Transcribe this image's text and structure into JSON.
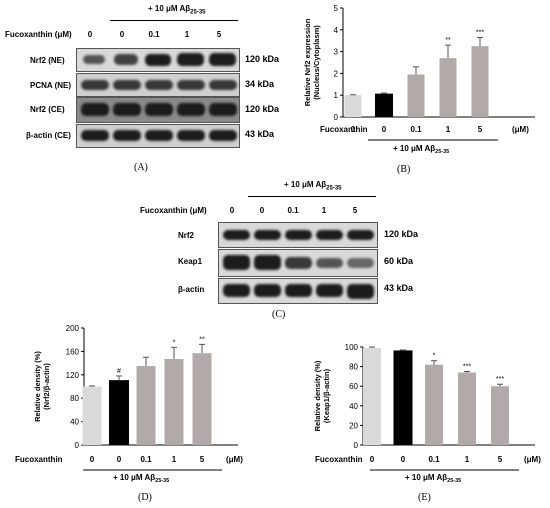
{
  "treatment_label": "+ 10 μM Aβ",
  "treatment_sub": "25-35",
  "fucoxanthin_um": "Fucoxanthin (μM)",
  "fucoxanthin": "Fucoxanthin",
  "um": "(μM)",
  "lanes": [
    "0",
    "0",
    "0.1",
    "1",
    "5"
  ],
  "panelA": {
    "label": "(A)",
    "rows": [
      {
        "name": "Nrf2 (NE)",
        "kda": "120 kDa"
      },
      {
        "name": "PCNA (NE)",
        "kda": "34 kDa"
      },
      {
        "name": "Nrf2 (CE)",
        "kda": "120 kDa"
      },
      {
        "name": "β-actin (CE)",
        "kda": "43 kDa"
      }
    ]
  },
  "panelC": {
    "label": "(C)",
    "rows": [
      {
        "name": "Nrf2",
        "kda": "120 kDa"
      },
      {
        "name": "Keap1",
        "kda": "60 kDa"
      },
      {
        "name": "β-actin",
        "kda": "43 kDa"
      }
    ]
  },
  "panel_labels": {
    "B": "(B)",
    "D": "(D)",
    "E": "(E)"
  },
  "colors": {
    "light": "#d9d9d9",
    "black": "#000000",
    "gray": "#b2aaa8"
  },
  "chart_data": [
    {
      "panel": "B",
      "type": "bar",
      "categories": [
        "0",
        "0",
        "0.1",
        "1",
        "5"
      ],
      "values": [
        1.0,
        1.05,
        1.95,
        2.7,
        3.25
      ],
      "errors": [
        0.02,
        0.05,
        0.35,
        0.6,
        0.4
      ],
      "annotations": [
        "",
        "",
        "",
        "**",
        "***"
      ],
      "ylabel": [
        "Relative Nrf2 expression",
        "(Nucleus/Cytoplasm)"
      ],
      "ylim": [
        0,
        5
      ],
      "yticks": [
        0,
        1,
        2,
        3,
        4,
        5
      ],
      "bar_colors": [
        "light",
        "black",
        "gray",
        "gray",
        "gray"
      ]
    },
    {
      "panel": "D",
      "type": "bar",
      "categories": [
        "0",
        "0",
        "0.1",
        "1",
        "5"
      ],
      "values": [
        100,
        110,
        135,
        147,
        157
      ],
      "errors": [
        1,
        8,
        15,
        20,
        15
      ],
      "annotations": [
        "",
        "#",
        "",
        "*",
        "**"
      ],
      "ylabel": [
        "Relative density (%)",
        "(Nrf2/β-actin)"
      ],
      "ylim": [
        0,
        200
      ],
      "yticks": [
        0,
        40,
        80,
        120,
        160,
        200
      ],
      "bar_colors": [
        "light",
        "black",
        "gray",
        "gray",
        "gray"
      ]
    },
    {
      "panel": "E",
      "type": "bar",
      "categories": [
        "0",
        "0",
        "0.1",
        "1",
        "5"
      ],
      "values": [
        99,
        96,
        82,
        74,
        60
      ],
      "errors": [
        1,
        1,
        4,
        1,
        2
      ],
      "annotations": [
        "",
        "",
        "*",
        "***",
        "***"
      ],
      "ylabel": [
        "Relative density (%)",
        "(Keap1/β-actin)"
      ],
      "ylim": [
        0,
        100
      ],
      "yticks": [
        0,
        20,
        40,
        60,
        80,
        100
      ],
      "bar_colors": [
        "light",
        "black",
        "gray",
        "gray",
        "gray"
      ]
    }
  ]
}
